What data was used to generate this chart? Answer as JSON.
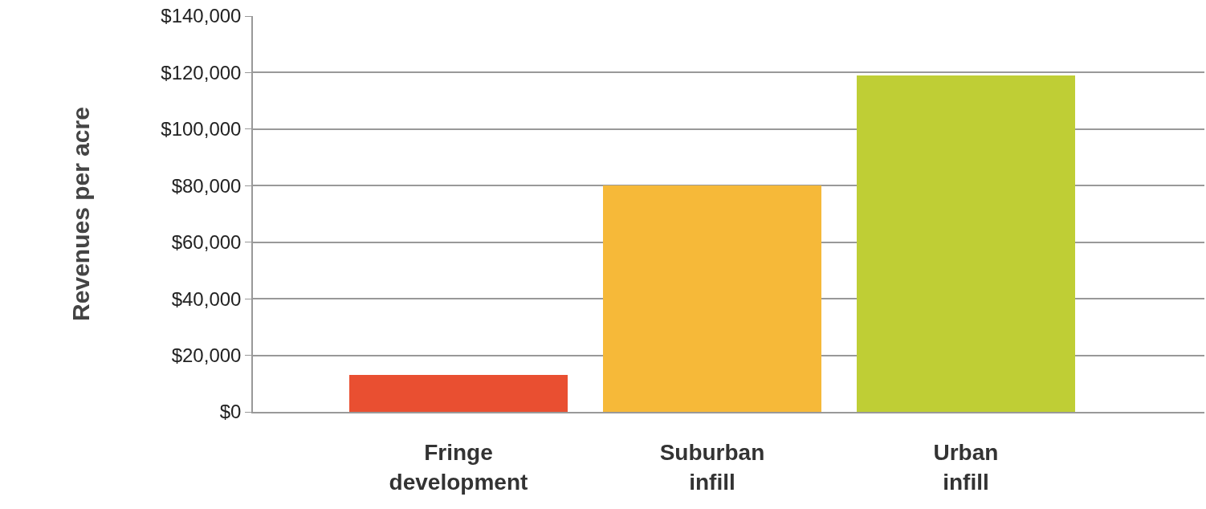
{
  "chart_data": {
    "type": "bar",
    "ylabel": "Revenues per acre",
    "categories": [
      "Fringe development",
      "Suburban infill",
      "Urban infill"
    ],
    "values": [
      13000,
      80000,
      119000
    ],
    "colors": [
      "#e94f31",
      "#f6b939",
      "#bfce35"
    ],
    "ylim": [
      0,
      140000
    ],
    "yticks": [
      {
        "value": 0,
        "label": "$0"
      },
      {
        "value": 20000,
        "label": "$20,000"
      },
      {
        "value": 40000,
        "label": "$40,000"
      },
      {
        "value": 60000,
        "label": "$60,000"
      },
      {
        "value": 80000,
        "label": "$80,000"
      },
      {
        "value": 100000,
        "label": "$100,000"
      },
      {
        "value": 120000,
        "label": "$120,000"
      },
      {
        "value": 140000,
        "label": "$140,000"
      }
    ],
    "grid": "y"
  }
}
